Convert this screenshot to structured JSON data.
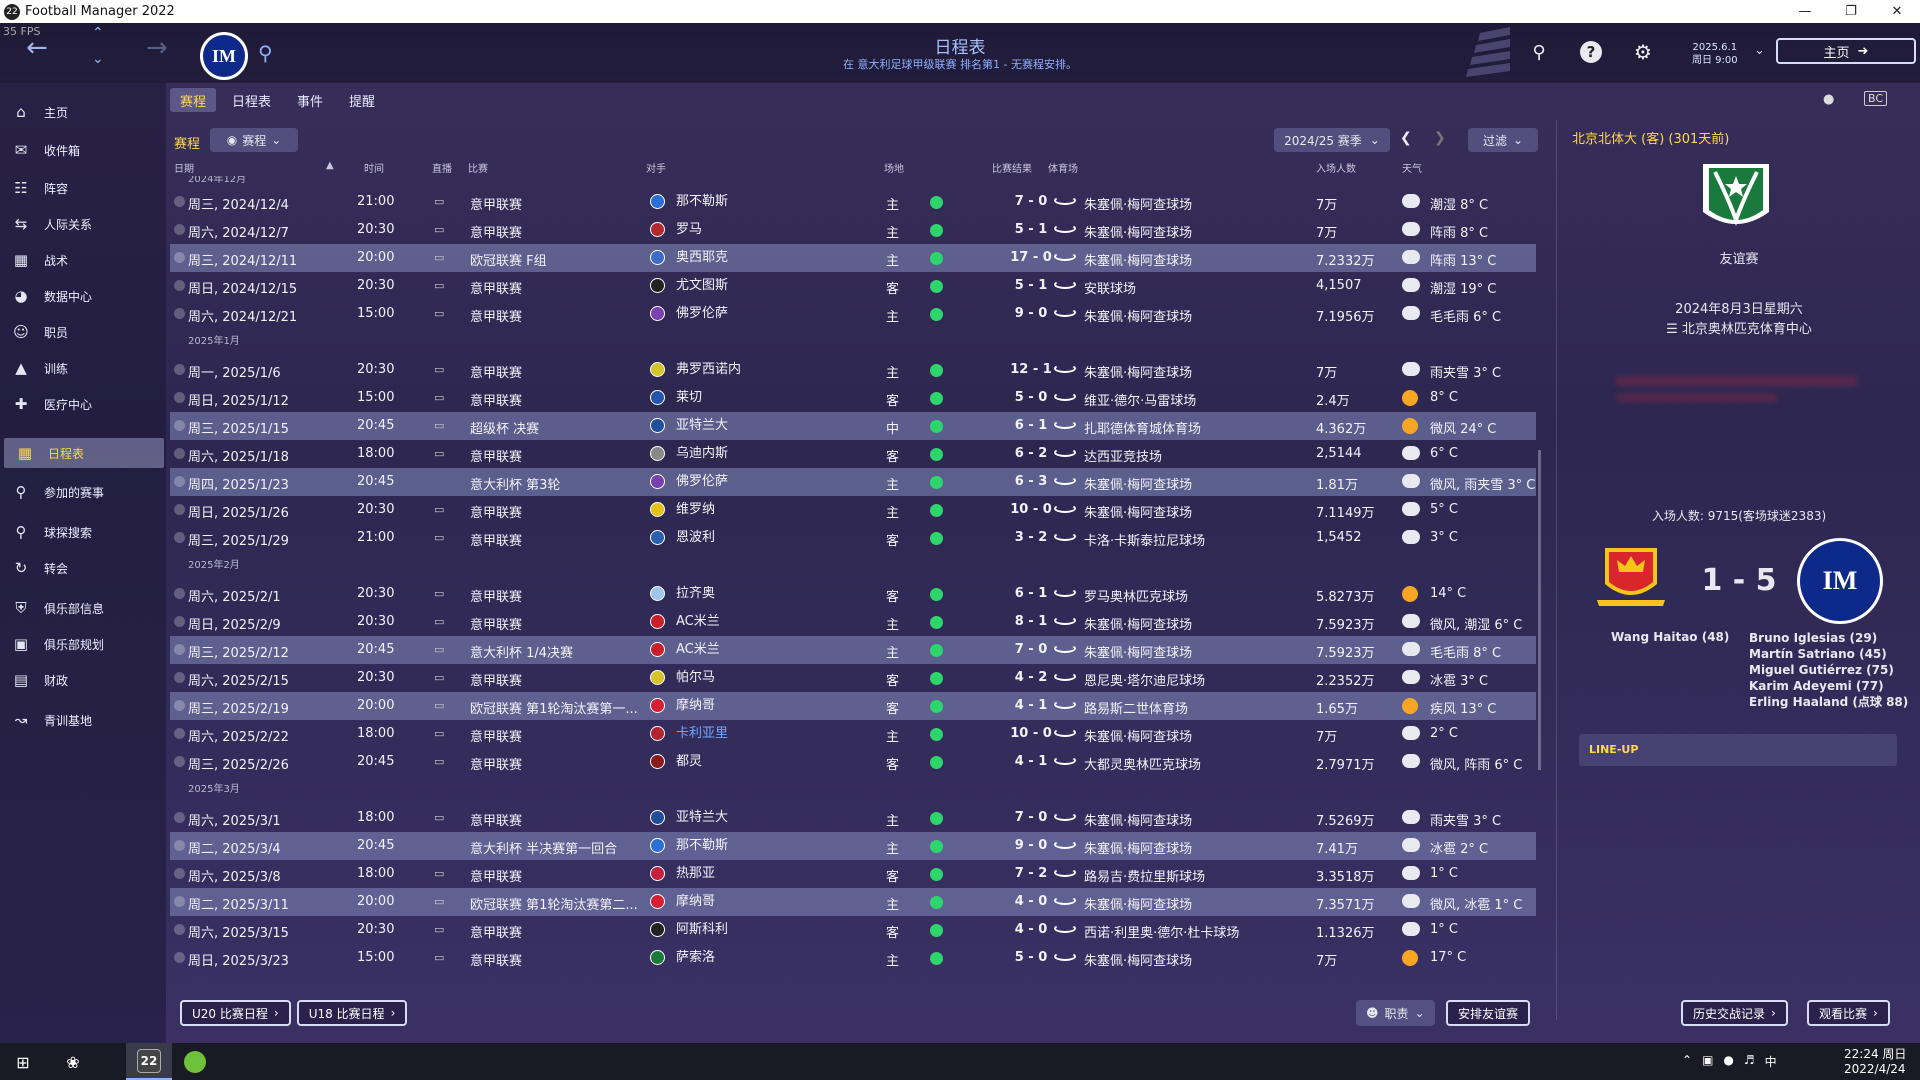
{
  "window": {
    "title": "Football Manager 2022",
    "fps": "35 FPS"
  },
  "header": {
    "heading": "日程表",
    "sub": "在 意大利足球甲级联赛 排名第1 - 无赛程安排。",
    "date_line1": "2025.6.1",
    "date_line2": "周日 9:00",
    "home_label": "主页",
    "club_abbr": "IM"
  },
  "sidebar": {
    "items": [
      {
        "label": "主页",
        "icon": "home-icon"
      },
      {
        "label": "收件箱",
        "icon": "inbox-icon"
      },
      {
        "label": "阵容",
        "icon": "squad-icon"
      },
      {
        "label": "人际关系",
        "icon": "relations-icon"
      },
      {
        "label": "战术",
        "icon": "tactics-icon"
      },
      {
        "label": "数据中心",
        "icon": "data-icon"
      },
      {
        "label": "职员",
        "icon": "staff-icon"
      },
      {
        "label": "训练",
        "icon": "training-icon"
      },
      {
        "label": "医疗中心",
        "icon": "medical-icon"
      },
      {
        "label": "日程表",
        "icon": "calendar-icon"
      },
      {
        "label": "参加的赛事",
        "icon": "trophy-icon"
      },
      {
        "label": "球探搜索",
        "icon": "scouting-icon"
      },
      {
        "label": "转会",
        "icon": "transfer-icon"
      },
      {
        "label": "俱乐部信息",
        "icon": "shield-icon"
      },
      {
        "label": "俱乐部规划",
        "icon": "vision-icon"
      },
      {
        "label": "财政",
        "icon": "finance-icon"
      },
      {
        "label": "青训基地",
        "icon": "youth-icon"
      }
    ]
  },
  "tabs": [
    "赛程",
    "日程表",
    "事件",
    "提醒"
  ],
  "panel": {
    "title": "赛程",
    "filter_pill": "赛程",
    "season": "2024/25 赛季",
    "filter_btn": "过滤",
    "columns": {
      "date": "日期",
      "time": "时间",
      "tv": "直播",
      "comp": "比赛",
      "opp": "对手",
      "venue": "场地",
      "result": "比赛结果",
      "stadium": "体育场",
      "attendance": "入场人数",
      "weather": "天气"
    },
    "months": [
      "2024年12月",
      "2025年1月",
      "2025年2月",
      "2025年3月"
    ],
    "fixtures": [
      {
        "date": "周三, 2024/12/4",
        "time": "21:00",
        "comp": "意甲联赛",
        "opp": "那不勒斯",
        "venue": "主",
        "score": "7 - 0",
        "stadium": "朱塞佩·梅阿查球场",
        "att": "7万",
        "weather": "潮湿 8° C"
      },
      {
        "date": "周六, 2024/12/7",
        "time": "20:30",
        "comp": "意甲联赛",
        "opp": "罗马",
        "venue": "主",
        "score": "5 - 1",
        "stadium": "朱塞佩·梅阿查球场",
        "att": "7万",
        "weather": "阵雨 8° C"
      },
      {
        "date": "周三, 2024/12/11",
        "time": "20:00",
        "comp": "欧冠联赛 F组",
        "opp": "奥西耶克",
        "venue": "主",
        "score": "17 - 0",
        "stadium": "朱塞佩·梅阿查球场",
        "att": "7.2332万",
        "weather": "阵雨 13° C"
      },
      {
        "date": "周日, 2024/12/15",
        "time": "20:30",
        "comp": "意甲联赛",
        "opp": "尤文图斯",
        "venue": "客",
        "score": "5 - 1",
        "stadium": "安联球场",
        "att": "4,1507",
        "weather": "潮湿 19° C"
      },
      {
        "date": "周六, 2024/12/21",
        "time": "15:00",
        "comp": "意甲联赛",
        "opp": "佛罗伦萨",
        "venue": "主",
        "score": "9 - 0",
        "stadium": "朱塞佩·梅阿查球场",
        "att": "7.1956万",
        "weather": "毛毛雨 6° C"
      },
      {
        "date": "周一, 2025/1/6",
        "time": "20:30",
        "comp": "意甲联赛",
        "opp": "弗罗西诺内",
        "venue": "主",
        "score": "12 - 1",
        "stadium": "朱塞佩·梅阿查球场",
        "att": "7万",
        "weather": "雨夹雪 3° C"
      },
      {
        "date": "周日, 2025/1/12",
        "time": "15:00",
        "comp": "意甲联赛",
        "opp": "莱切",
        "venue": "客",
        "score": "5 - 0",
        "stadium": "维亚·德尔·马雷球场",
        "att": "2.4万",
        "weather": "8° C"
      },
      {
        "date": "周三, 2025/1/15",
        "time": "20:45",
        "comp": "超级杯 决赛",
        "opp": "亚特兰大",
        "venue": "中",
        "score": "6 - 1",
        "stadium": "扎耶德体育城体育场",
        "att": "4.362万",
        "weather": "微风 24° C"
      },
      {
        "date": "周六, 2025/1/18",
        "time": "18:00",
        "comp": "意甲联赛",
        "opp": "乌迪内斯",
        "venue": "客",
        "score": "6 - 2",
        "stadium": "达西亚竞技场",
        "att": "2,5144",
        "weather": "6° C"
      },
      {
        "date": "周四, 2025/1/23",
        "time": "20:45",
        "comp": "意大利杯 第3轮",
        "opp": "佛罗伦萨",
        "venue": "主",
        "score": "6 - 3",
        "stadium": "朱塞佩·梅阿查球场",
        "att": "1.81万",
        "weather": "微风, 雨夹雪 3° C"
      },
      {
        "date": "周日, 2025/1/26",
        "time": "20:30",
        "comp": "意甲联赛",
        "opp": "维罗纳",
        "venue": "主",
        "score": "10 - 0",
        "stadium": "朱塞佩·梅阿查球场",
        "att": "7.1149万",
        "weather": "5° C"
      },
      {
        "date": "周三, 2025/1/29",
        "time": "21:00",
        "comp": "意甲联赛",
        "opp": "恩波利",
        "venue": "客",
        "score": "3 - 2",
        "stadium": "卡洛·卡斯泰拉尼球场",
        "att": "1,5452",
        "weather": "3° C"
      },
      {
        "date": "周六, 2025/2/1",
        "time": "20:30",
        "comp": "意甲联赛",
        "opp": "拉齐奥",
        "venue": "客",
        "score": "6 - 1",
        "stadium": "罗马奥林匹克球场",
        "att": "5.8273万",
        "weather": "14° C"
      },
      {
        "date": "周日, 2025/2/9",
        "time": "20:30",
        "comp": "意甲联赛",
        "opp": "AC米兰",
        "venue": "主",
        "score": "8 - 1",
        "stadium": "朱塞佩·梅阿查球场",
        "att": "7.5923万",
        "weather": "微风, 潮湿 6° C"
      },
      {
        "date": "周三, 2025/2/12",
        "time": "20:45",
        "comp": "意大利杯 1/4决赛",
        "opp": "AC米兰",
        "venue": "主",
        "score": "7 - 0",
        "stadium": "朱塞佩·梅阿查球场",
        "att": "7.5923万",
        "weather": "毛毛雨 8° C"
      },
      {
        "date": "周六, 2025/2/15",
        "time": "20:30",
        "comp": "意甲联赛",
        "opp": "帕尔马",
        "venue": "客",
        "score": "4 - 2",
        "stadium": "恩尼奥·塔尔迪尼球场",
        "att": "2.2352万",
        "weather": "冰雹 3° C"
      },
      {
        "date": "周三, 2025/2/19",
        "time": "20:00",
        "comp": "欧冠联赛 第1轮淘汰赛第一...",
        "opp": "摩纳哥",
        "venue": "客",
        "score": "4 - 1",
        "stadium": "路易斯二世体育场",
        "att": "1.65万",
        "weather": "疾风 13° C"
      },
      {
        "date": "周六, 2025/2/22",
        "time": "18:00",
        "comp": "意甲联赛",
        "opp": "卡利亚里",
        "venue": "主",
        "score": "10 - 0",
        "stadium": "朱塞佩·梅阿查球场",
        "att": "7万",
        "weather": "2° C"
      },
      {
        "date": "周三, 2025/2/26",
        "time": "20:45",
        "comp": "意甲联赛",
        "opp": "都灵",
        "venue": "客",
        "score": "4 - 1",
        "stadium": "大都灵奥林匹克球场",
        "att": "2.7971万",
        "weather": "微风, 阵雨 6° C"
      },
      {
        "date": "周六, 2025/3/1",
        "time": "18:00",
        "comp": "意甲联赛",
        "opp": "亚特兰大",
        "venue": "主",
        "score": "7 - 0",
        "stadium": "朱塞佩·梅阿查球场",
        "att": "7.5269万",
        "weather": "雨夹雪 3° C"
      },
      {
        "date": "周二, 2025/3/4",
        "time": "20:45",
        "comp": "意大利杯 半决赛第一回合",
        "opp": "那不勒斯",
        "venue": "主",
        "score": "9 - 0",
        "stadium": "朱塞佩·梅阿查球场",
        "att": "7.41万",
        "weather": "冰雹 2° C"
      },
      {
        "date": "周六, 2025/3/8",
        "time": "18:00",
        "comp": "意甲联赛",
        "opp": "热那亚",
        "venue": "客",
        "score": "7 - 2",
        "stadium": "路易吉·费拉里斯球场",
        "att": "3.3518万",
        "weather": "1° C"
      },
      {
        "date": "周二, 2025/3/11",
        "time": "20:00",
        "comp": "欧冠联赛 第1轮淘汰赛第二...",
        "opp": "摩纳哥",
        "venue": "主",
        "score": "4 - 0",
        "stadium": "朱塞佩·梅阿查球场",
        "att": "7.3571万",
        "weather": "微风, 冰雹 1° C"
      },
      {
        "date": "周六, 2025/3/15",
        "time": "20:30",
        "comp": "意甲联赛",
        "opp": "阿斯科利",
        "venue": "客",
        "score": "4 - 0",
        "stadium": "西诺·利里奥·德尔·杜卡球场",
        "att": "1.1326万",
        "weather": "1° C"
      },
      {
        "date": "周日, 2025/3/23",
        "time": "15:00",
        "comp": "意甲联赛",
        "opp": "萨索洛",
        "venue": "主",
        "score": "5 - 0",
        "stadium": "朱塞佩·梅阿查球场",
        "att": "7万",
        "weather": "17° C"
      }
    ],
    "btn_u20": "U20 比赛日程",
    "btn_u18": "U18 比赛日程",
    "btn_staff": "职责",
    "btn_friendly": "安排友谊赛"
  },
  "right": {
    "title": "北京北体大 (客) (301天前)",
    "comp": "友谊赛",
    "date": "2024年8月3日星期六",
    "venue": "北京奥林匹克体育中心",
    "attendance": "入场人数: 9715(客场球迷2383)",
    "score": "1 - 5",
    "home_scorer": "Wang Haitao (48)",
    "away_scorers": [
      "Bruno Iglesias (29)",
      "Martín Satriano (45)",
      "Miguel Gutiérrez (75)",
      "Karim Adeyemi (77)",
      "Erling Haaland (点球 88)"
    ],
    "lineup": "LINE-UP",
    "btn_h2h": "历史交战记录",
    "btn_watch": "观看比赛"
  },
  "taskbar": {
    "fm_label": "22",
    "time": "22:24 周日",
    "date": "2022/4/24",
    "ime": "中"
  },
  "colors": {
    "accent_yellow": "#ffd84a",
    "win_green": "#2dd66b",
    "link_blue": "#6fa6ff"
  }
}
